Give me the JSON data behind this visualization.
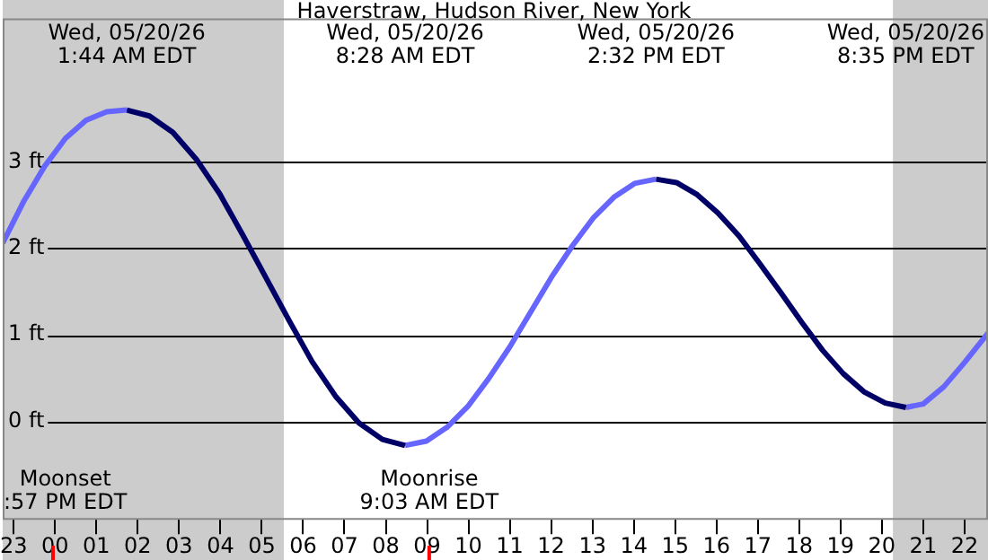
{
  "chart_data": {
    "type": "line",
    "title": "Haverstraw, Hudson River, New York",
    "xlim": [
      "--05-19T22:44",
      "--05-20T22:34"
    ],
    "xticks": [
      {
        "value": "--05-19T23:00",
        "label": "23"
      },
      {
        "value": "--05-20T00:00",
        "label": "00"
      },
      {
        "value": "--05-20T01:00",
        "label": "01"
      },
      {
        "value": "--05-20T02:00",
        "label": "02"
      },
      {
        "value": "--05-20T03:00",
        "label": "03"
      },
      {
        "value": "--05-20T04:00",
        "label": "04"
      },
      {
        "value": "--05-20T05:00",
        "label": "05"
      },
      {
        "value": "--05-20T06:00",
        "label": "06"
      },
      {
        "value": "--05-20T07:00",
        "label": "07"
      },
      {
        "value": "--05-20T08:00",
        "label": "08"
      },
      {
        "value": "--05-20T09:00",
        "label": "09"
      },
      {
        "value": "--05-20T10:00",
        "label": "10"
      },
      {
        "value": "--05-20T11:00",
        "label": "11"
      },
      {
        "value": "--05-20T12:00",
        "label": "12"
      },
      {
        "value": "--05-20T13:00",
        "label": "13"
      },
      {
        "value": "--05-20T14:00",
        "label": "14"
      },
      {
        "value": "--05-20T15:00",
        "label": "15"
      },
      {
        "value": "--05-20T16:00",
        "label": "16"
      },
      {
        "value": "--05-20T17:00",
        "label": "17"
      },
      {
        "value": "--05-20T18:00",
        "label": "18"
      },
      {
        "value": "--05-20T19:00",
        "label": "19"
      },
      {
        "value": "--05-20T20:00",
        "label": "20"
      },
      {
        "value": "--05-20T21:00",
        "label": "21"
      },
      {
        "value": "--05-20T22:00",
        "label": "22"
      }
    ],
    "ylim": [
      -1.14,
      4.66
    ],
    "yticks": [
      {
        "value": 0,
        "label": "0 ft"
      },
      {
        "value": 1,
        "label": "1 ft"
      },
      {
        "value": 2,
        "label": "2 ft"
      },
      {
        "value": 3,
        "label": "3 ft"
      }
    ],
    "grid": "y",
    "legend": false,
    "series": [
      {
        "color": "#6666ff",
        "x": [
          "--05-19T22:44",
          "--05-19T23:15",
          "--05-19T23:45",
          "--05-20T00:15",
          "--05-20T00:45",
          "--05-20T01:15",
          "--05-20T01:44"
        ],
        "values": [
          2.06,
          2.55,
          2.95,
          3.27,
          3.48,
          3.58,
          3.6
        ]
      },
      {
        "color": "#000066",
        "x": [
          "--05-20T01:44",
          "--05-20T02:17",
          "--05-20T02:51",
          "--05-20T03:25",
          "--05-20T03:59",
          "--05-20T04:32",
          "--05-20T05:06",
          "--05-20T05:40",
          "--05-20T06:13",
          "--05-20T06:47",
          "--05-20T07:21",
          "--05-20T07:55",
          "--05-20T08:28"
        ],
        "values": [
          3.6,
          3.53,
          3.34,
          3.03,
          2.63,
          2.16,
          1.66,
          1.16,
          0.69,
          0.29,
          -0.02,
          -0.21,
          -0.28
        ]
      },
      {
        "color": "#6666ff",
        "x": [
          "--05-20T08:28",
          "--05-20T08:59",
          "--05-20T09:29",
          "--05-20T09:59",
          "--05-20T10:29",
          "--05-20T11:00",
          "--05-20T11:30",
          "--05-20T12:00",
          "--05-20T12:31",
          "--05-20T13:01",
          "--05-20T13:31",
          "--05-20T14:01",
          "--05-20T14:32"
        ],
        "values": [
          -0.28,
          -0.23,
          -0.07,
          0.17,
          0.49,
          0.86,
          1.26,
          1.66,
          2.03,
          2.35,
          2.59,
          2.75,
          2.8
        ]
      },
      {
        "color": "#000066",
        "x": [
          "--05-20T14:32",
          "--05-20T15:02",
          "--05-20T15:32",
          "--05-20T16:02",
          "--05-20T16:33",
          "--05-20T17:03",
          "--05-20T17:34",
          "--05-20T18:04",
          "--05-20T18:34",
          "--05-20T19:04",
          "--05-20T19:34",
          "--05-20T20:05",
          "--05-20T20:35"
        ],
        "values": [
          2.8,
          2.76,
          2.62,
          2.41,
          2.14,
          1.82,
          1.48,
          1.14,
          0.82,
          0.55,
          0.34,
          0.21,
          0.16
        ]
      },
      {
        "color": "#6666ff",
        "x": [
          "--05-20T20:35",
          "--05-20T21:00",
          "--05-20T21:30",
          "--05-20T22:00",
          "--05-20T22:34"
        ],
        "values": [
          0.16,
          0.2,
          0.4,
          0.68,
          1.02
        ]
      }
    ],
    "bands": [
      {
        "axis": "x",
        "from": "--05-19T22:44",
        "to": "--05-20T05:32",
        "color": "#cccccc"
      },
      {
        "axis": "x",
        "from": "--05-20T20:16",
        "to": "--05-20T22:34",
        "color": "#cccccc"
      }
    ],
    "ref_lines": [
      {
        "axis": "x",
        "value": "--05-19T23:57",
        "label": "Moonset\n:57 PM EDT",
        "color": "#ff0000"
      },
      {
        "axis": "x",
        "value": "--05-20T09:03",
        "label": "Moonrise\n9:03 AM EDT",
        "color": "#ff0000"
      }
    ],
    "annotations": [
      "Wed, 05/20/26\n1:44 AM EDT",
      "Wed, 05/20/26\n8:28 AM EDT",
      "Wed, 05/20/26\n2:32 PM EDT",
      "Wed, 05/20/26\n8:35 PM EDT"
    ]
  }
}
